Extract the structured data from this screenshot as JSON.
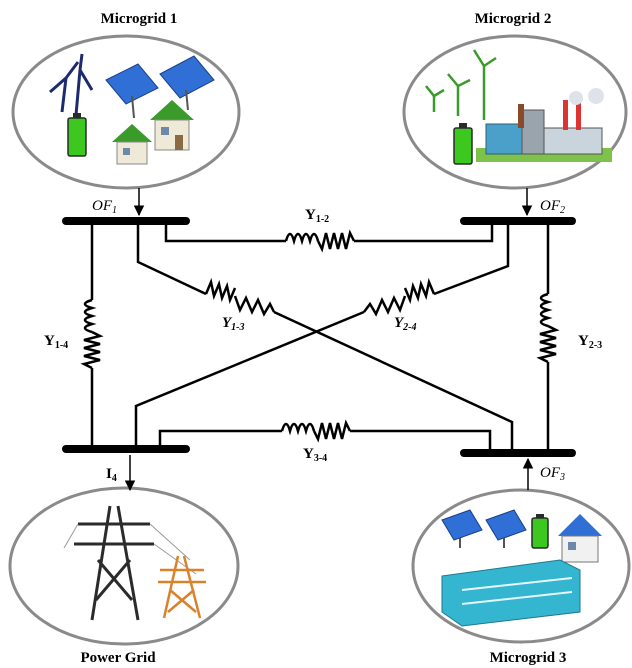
{
  "nodes": {
    "mg1": {
      "title": "Microgrid 1",
      "flow_main": "OF",
      "flow_sub": "1"
    },
    "mg2": {
      "title": "Microgrid 2",
      "flow_main": "OF",
      "flow_sub": "2"
    },
    "mg3": {
      "title": "Microgrid 3",
      "flow_main": "OF",
      "flow_sub": "3"
    },
    "grid": {
      "title": "Power Grid",
      "flow_main": "I",
      "flow_sub": "4"
    }
  },
  "lines": {
    "y12": {
      "main": "Y",
      "sub": "1-2"
    },
    "y13": {
      "main": "Y",
      "sub": "1-3"
    },
    "y24": {
      "main": "Y",
      "sub": "2-4"
    },
    "y14": {
      "main": "Y",
      "sub": "1-4"
    },
    "y23": {
      "main": "Y",
      "sub": "2-3"
    },
    "y34": {
      "main": "Y",
      "sub": "3-4"
    }
  },
  "colors": {
    "line": "#000000",
    "ellipse_fill": "#ffffff",
    "ellipse_stroke": "#8a8a8a",
    "solar": "#2f6fd6",
    "battery": "#3cc81e",
    "house_roof": "#3a9b2a",
    "factory": "#4aa0c8",
    "building": "#35b6d0",
    "tower_dark": "#2b2b2b",
    "tower_orange": "#d9822b"
  },
  "icons": {
    "mg1": [
      "wind-turbine-icon",
      "solar-panel-icon",
      "battery-icon",
      "house-icon"
    ],
    "mg2": [
      "wind-turbine-icon",
      "factory-icon",
      "battery-icon"
    ],
    "mg3": [
      "solar-panel-icon",
      "battery-icon",
      "house-icon",
      "office-building-icon"
    ],
    "grid": [
      "transmission-tower-icon"
    ]
  }
}
